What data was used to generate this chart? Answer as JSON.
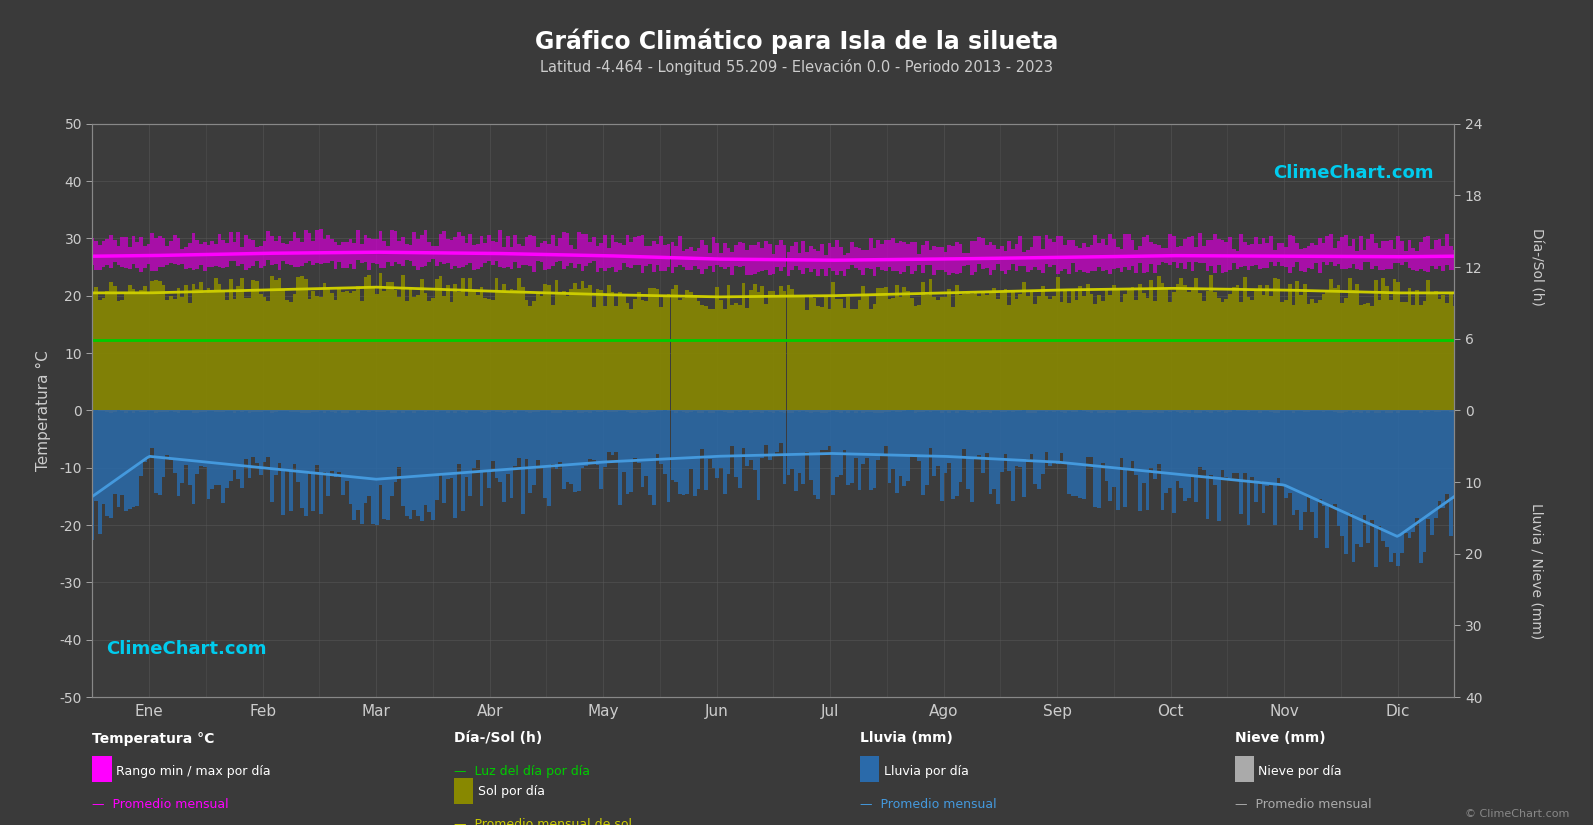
{
  "title": "Gráfico Climático para Isla de la silueta",
  "subtitle": "Latitud -4.464 - Longitud 55.209 - Elevación 0.0 - Periodo 2013 - 2023",
  "months": [
    "Ene",
    "Feb",
    "Mar",
    "Abr",
    "May",
    "Jun",
    "Jul",
    "Ago",
    "Sep",
    "Oct",
    "Nov",
    "Dic"
  ],
  "temp_min_monthly": [
    25.5,
    25.8,
    26.0,
    25.8,
    25.5,
    25.0,
    24.8,
    25.0,
    25.2,
    25.5,
    25.5,
    25.5
  ],
  "temp_max_monthly": [
    28.5,
    29.0,
    29.2,
    29.0,
    28.5,
    27.8,
    27.5,
    27.8,
    28.2,
    28.5,
    28.3,
    28.2
  ],
  "temp_avg_monthly": [
    27.0,
    27.4,
    27.6,
    27.4,
    27.0,
    26.4,
    26.2,
    26.4,
    26.7,
    27.0,
    26.9,
    26.8
  ],
  "daylight_monthly": [
    12.2,
    12.2,
    12.2,
    12.2,
    12.2,
    12.2,
    12.2,
    12.2,
    12.2,
    12.2,
    12.2,
    12.2
  ],
  "sunshine_monthly": [
    20.5,
    21.0,
    21.5,
    20.8,
    20.2,
    19.8,
    20.0,
    20.5,
    21.0,
    21.3,
    21.0,
    20.5
  ],
  "rain_avg_line_temp": [
    -8.0,
    -10.0,
    -12.0,
    -10.5,
    -9.0,
    -8.0,
    -7.5,
    -8.0,
    -9.0,
    -11.0,
    -13.0,
    -22.0
  ],
  "bg_color": "#3a3a3a",
  "plot_bg_color": "#3c3c3c",
  "grid_color": "#5a5a5a",
  "title_color": "#ffffff",
  "subtitle_color": "#cccccc",
  "tick_color": "#cccccc",
  "temp_bar_color": "#cc00cc",
  "temp_line_color": "#ff00ff",
  "daylight_color": "#00cc00",
  "sunshine_bar_color": "#888800",
  "sunshine_line_color": "#cccc00",
  "rain_bar_color": "#2a6aaa",
  "rain_line_color": "#4499dd",
  "snow_bar_color": "#888888",
  "snow_line_color": "#aaaaaa"
}
